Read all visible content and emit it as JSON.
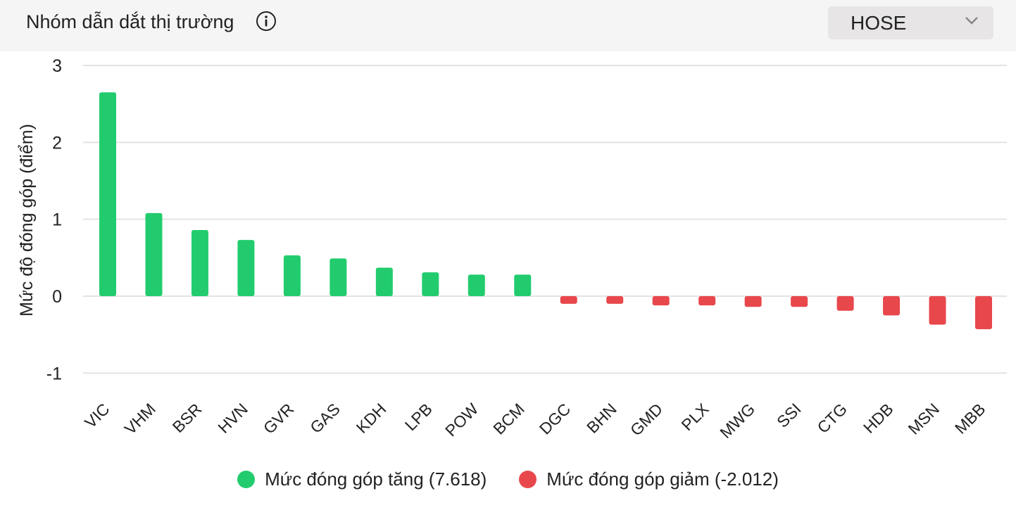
{
  "header": {
    "title": "Nhóm dẫn dắt thị trường",
    "info_icon": "info-circle-icon",
    "exchange_select": {
      "value": "HOSE",
      "icon": "chevron-down-icon"
    }
  },
  "colors": {
    "up": "#22cc6e",
    "down": "#e8474c",
    "grid": "#e3e3e3",
    "header_bg": "#f5f5f5"
  },
  "chart_data": {
    "type": "bar",
    "ylabel": "Mức độ đóng góp (điểm)",
    "xlabel": "",
    "ylim": [
      -1,
      3
    ],
    "yticks": [
      "3",
      "2",
      "1",
      "0",
      "-1"
    ],
    "ytick_values": [
      3,
      2,
      1,
      0,
      -1
    ],
    "categories": [
      "VIC",
      "VHM",
      "BSR",
      "HVN",
      "GVR",
      "GAS",
      "KDH",
      "LPB",
      "POW",
      "BCM",
      "DGC",
      "BHN",
      "GMD",
      "PLX",
      "MWG",
      "SSI",
      "CTG",
      "HDB",
      "MSN",
      "MBB"
    ],
    "values": [
      2.65,
      1.08,
      0.86,
      0.73,
      0.53,
      0.49,
      0.37,
      0.31,
      0.28,
      0.28,
      -0.1,
      -0.1,
      -0.12,
      -0.12,
      -0.14,
      -0.14,
      -0.19,
      -0.25,
      -0.37,
      -0.43
    ],
    "grid": true,
    "legend_position": "bottom",
    "legend": [
      {
        "label": "Mức đóng góp tăng (7.618)",
        "color": "#22cc6e"
      },
      {
        "label": "Mức đóng góp giảm (-2.012)",
        "color": "#e8474c"
      }
    ]
  }
}
